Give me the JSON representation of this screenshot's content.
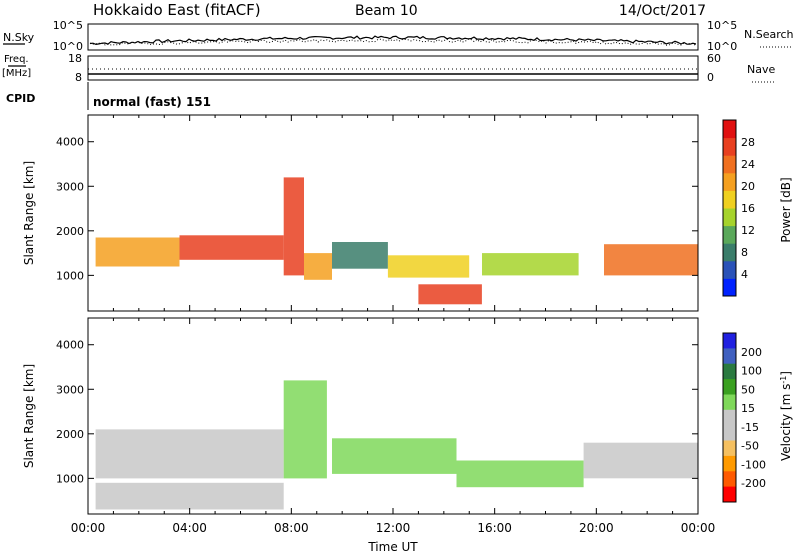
{
  "header": {
    "station": "Hokkaido East (fitACF)",
    "beam": "Beam 10",
    "date": "14/Oct/2017"
  },
  "noise_panel": {
    "left_label": "N.Sky",
    "right_label": "N.Search",
    "left_ticks": [
      "10^5",
      "10^0"
    ],
    "right_ticks": [
      "10^5",
      "10^0"
    ]
  },
  "freq_panel": {
    "left_label_1": "Freq.",
    "left_label_2": "[MHz]",
    "right_label": "Nave",
    "left_ticks": [
      "18",
      "8"
    ],
    "right_ticks": [
      "60",
      "0"
    ]
  },
  "cpid_panel": {
    "label": "CPID",
    "text": "normal (fast) 151"
  },
  "colors": {
    "power_scale": [
      "#0022ff",
      "#2a52b8",
      "#3a7d6a",
      "#5aa85a",
      "#a6d32c",
      "#f0d020",
      "#f5a020",
      "#f07020",
      "#e84020",
      "#e01010"
    ],
    "velocity_scale": [
      "#ff0000",
      "#ff5a00",
      "#ff9a00",
      "#f5c060",
      "#c8c8c8",
      "#c8c8c8",
      "#7fd85a",
      "#3aa020",
      "#2a7a40",
      "#4060c0",
      "#2020e0"
    ]
  },
  "chart_data": [
    {
      "type": "heatmap",
      "panel": "power",
      "x_axis": "time",
      "xlim": [
        "00:00",
        "00:00"
      ],
      "x_tick_labels": [
        "00:00",
        "04:00",
        "08:00",
        "12:00",
        "16:00",
        "20:00",
        "00:00"
      ],
      "xlabel": "Time UT",
      "ylabel": "Slant Range [km]",
      "ylim": [
        200,
        4600
      ],
      "y_ticks": [
        1000,
        2000,
        3000,
        4000
      ],
      "colorbar_label": "Power [dB]",
      "colorbar_range": [
        0,
        32
      ],
      "colorbar_ticks": [
        4,
        8,
        12,
        16,
        20,
        24,
        28
      ],
      "bands": [
        {
          "t_start": 0.3,
          "t_end": 3.6,
          "range_start": 1200,
          "range_end": 1850,
          "value": 22
        },
        {
          "t_start": 3.6,
          "t_end": 7.7,
          "range_start": 1350,
          "range_end": 1900,
          "value": 26
        },
        {
          "t_start": 7.7,
          "t_end": 8.5,
          "range_start": 1000,
          "range_end": 3200,
          "value": 27
        },
        {
          "t_start": 8.5,
          "t_end": 9.6,
          "range_start": 900,
          "range_end": 1500,
          "value": 22
        },
        {
          "t_start": 9.6,
          "t_end": 11.8,
          "range_start": 1150,
          "range_end": 1750,
          "value": 9
        },
        {
          "t_start": 11.8,
          "t_end": 15.0,
          "range_start": 950,
          "range_end": 1450,
          "value": 18
        },
        {
          "t_start": 13.0,
          "t_end": 15.5,
          "range_start": 350,
          "range_end": 800,
          "value": 26
        },
        {
          "t_start": 15.5,
          "t_end": 19.3,
          "range_start": 1000,
          "range_end": 1500,
          "value": 14
        },
        {
          "t_start": 20.3,
          "t_end": 24.0,
          "range_start": 1000,
          "range_end": 1700,
          "value": 24
        }
      ]
    },
    {
      "type": "heatmap",
      "panel": "velocity",
      "x_axis": "time",
      "xlim": [
        "00:00",
        "00:00"
      ],
      "x_tick_labels": [
        "00:00",
        "04:00",
        "08:00",
        "12:00",
        "16:00",
        "20:00",
        "00:00"
      ],
      "xlabel": "Time UT",
      "ylabel": "Slant Range [km]",
      "ylim": [
        200,
        4600
      ],
      "y_ticks": [
        1000,
        2000,
        3000,
        4000
      ],
      "colorbar_label": "Velocity [m s^-1]",
      "colorbar_ticks": [
        200,
        100,
        50,
        15,
        -15,
        -50,
        -100,
        -200
      ],
      "bands": [
        {
          "t_start": 0.3,
          "t_end": 7.7,
          "range_start": 1000,
          "range_end": 2100,
          "value": 0
        },
        {
          "t_start": 0.3,
          "t_end": 7.7,
          "range_start": 300,
          "range_end": 900,
          "value": 0
        },
        {
          "t_start": 7.7,
          "t_end": 9.4,
          "range_start": 1000,
          "range_end": 3200,
          "value": 60
        },
        {
          "t_start": 9.6,
          "t_end": 14.5,
          "range_start": 1100,
          "range_end": 1900,
          "value": 60
        },
        {
          "t_start": 14.5,
          "t_end": 19.5,
          "range_start": 800,
          "range_end": 1400,
          "value": 40
        },
        {
          "t_start": 19.5,
          "t_end": 24.0,
          "range_start": 1000,
          "range_end": 1800,
          "value": 0
        }
      ]
    }
  ]
}
